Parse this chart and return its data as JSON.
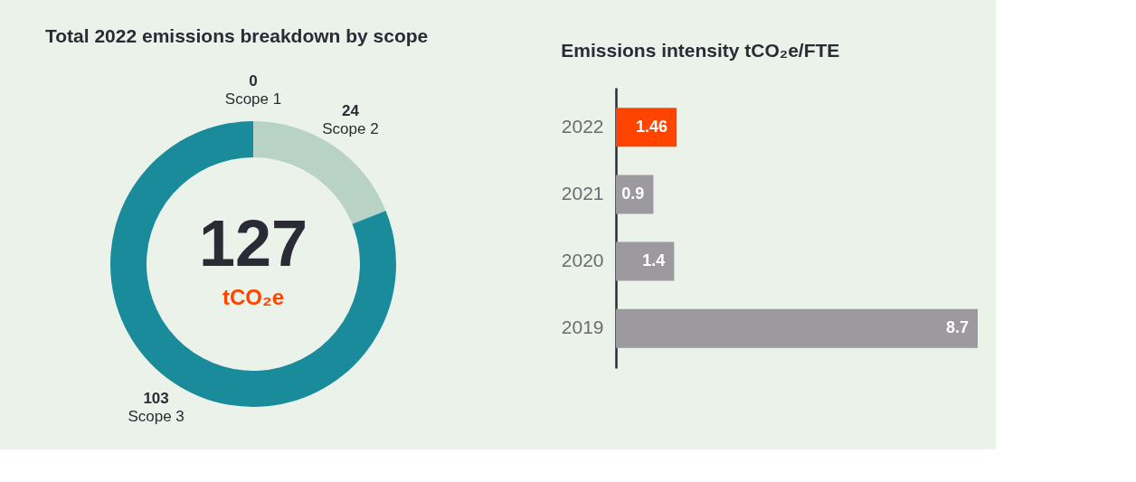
{
  "chart_data": [
    {
      "type": "donut",
      "title": "Total 2022 emissions breakdown by scope",
      "categories": [
        "Scope 1",
        "Scope 2",
        "Scope 3"
      ],
      "values": [
        0,
        24,
        103
      ],
      "colors": [
        "#1a8b9b",
        "#b8d3c6",
        "#1a8b9b"
      ],
      "value_labels": [
        "0",
        "24",
        "103"
      ],
      "annotations": [
        "127",
        "tCO₂e"
      ]
    },
    {
      "type": "bar",
      "orientation": "horizontal",
      "title": "Emissions intensity tCO₂e/FTE",
      "categories": [
        "2022",
        "2021",
        "2020",
        "2019"
      ],
      "values": [
        1.46,
        0.9,
        1.4,
        8.7
      ],
      "colors": [
        "#ff4400",
        "#9c9a9f",
        "#9c9a9f",
        "#9c9a9f"
      ],
      "data_labels": true
    }
  ]
}
